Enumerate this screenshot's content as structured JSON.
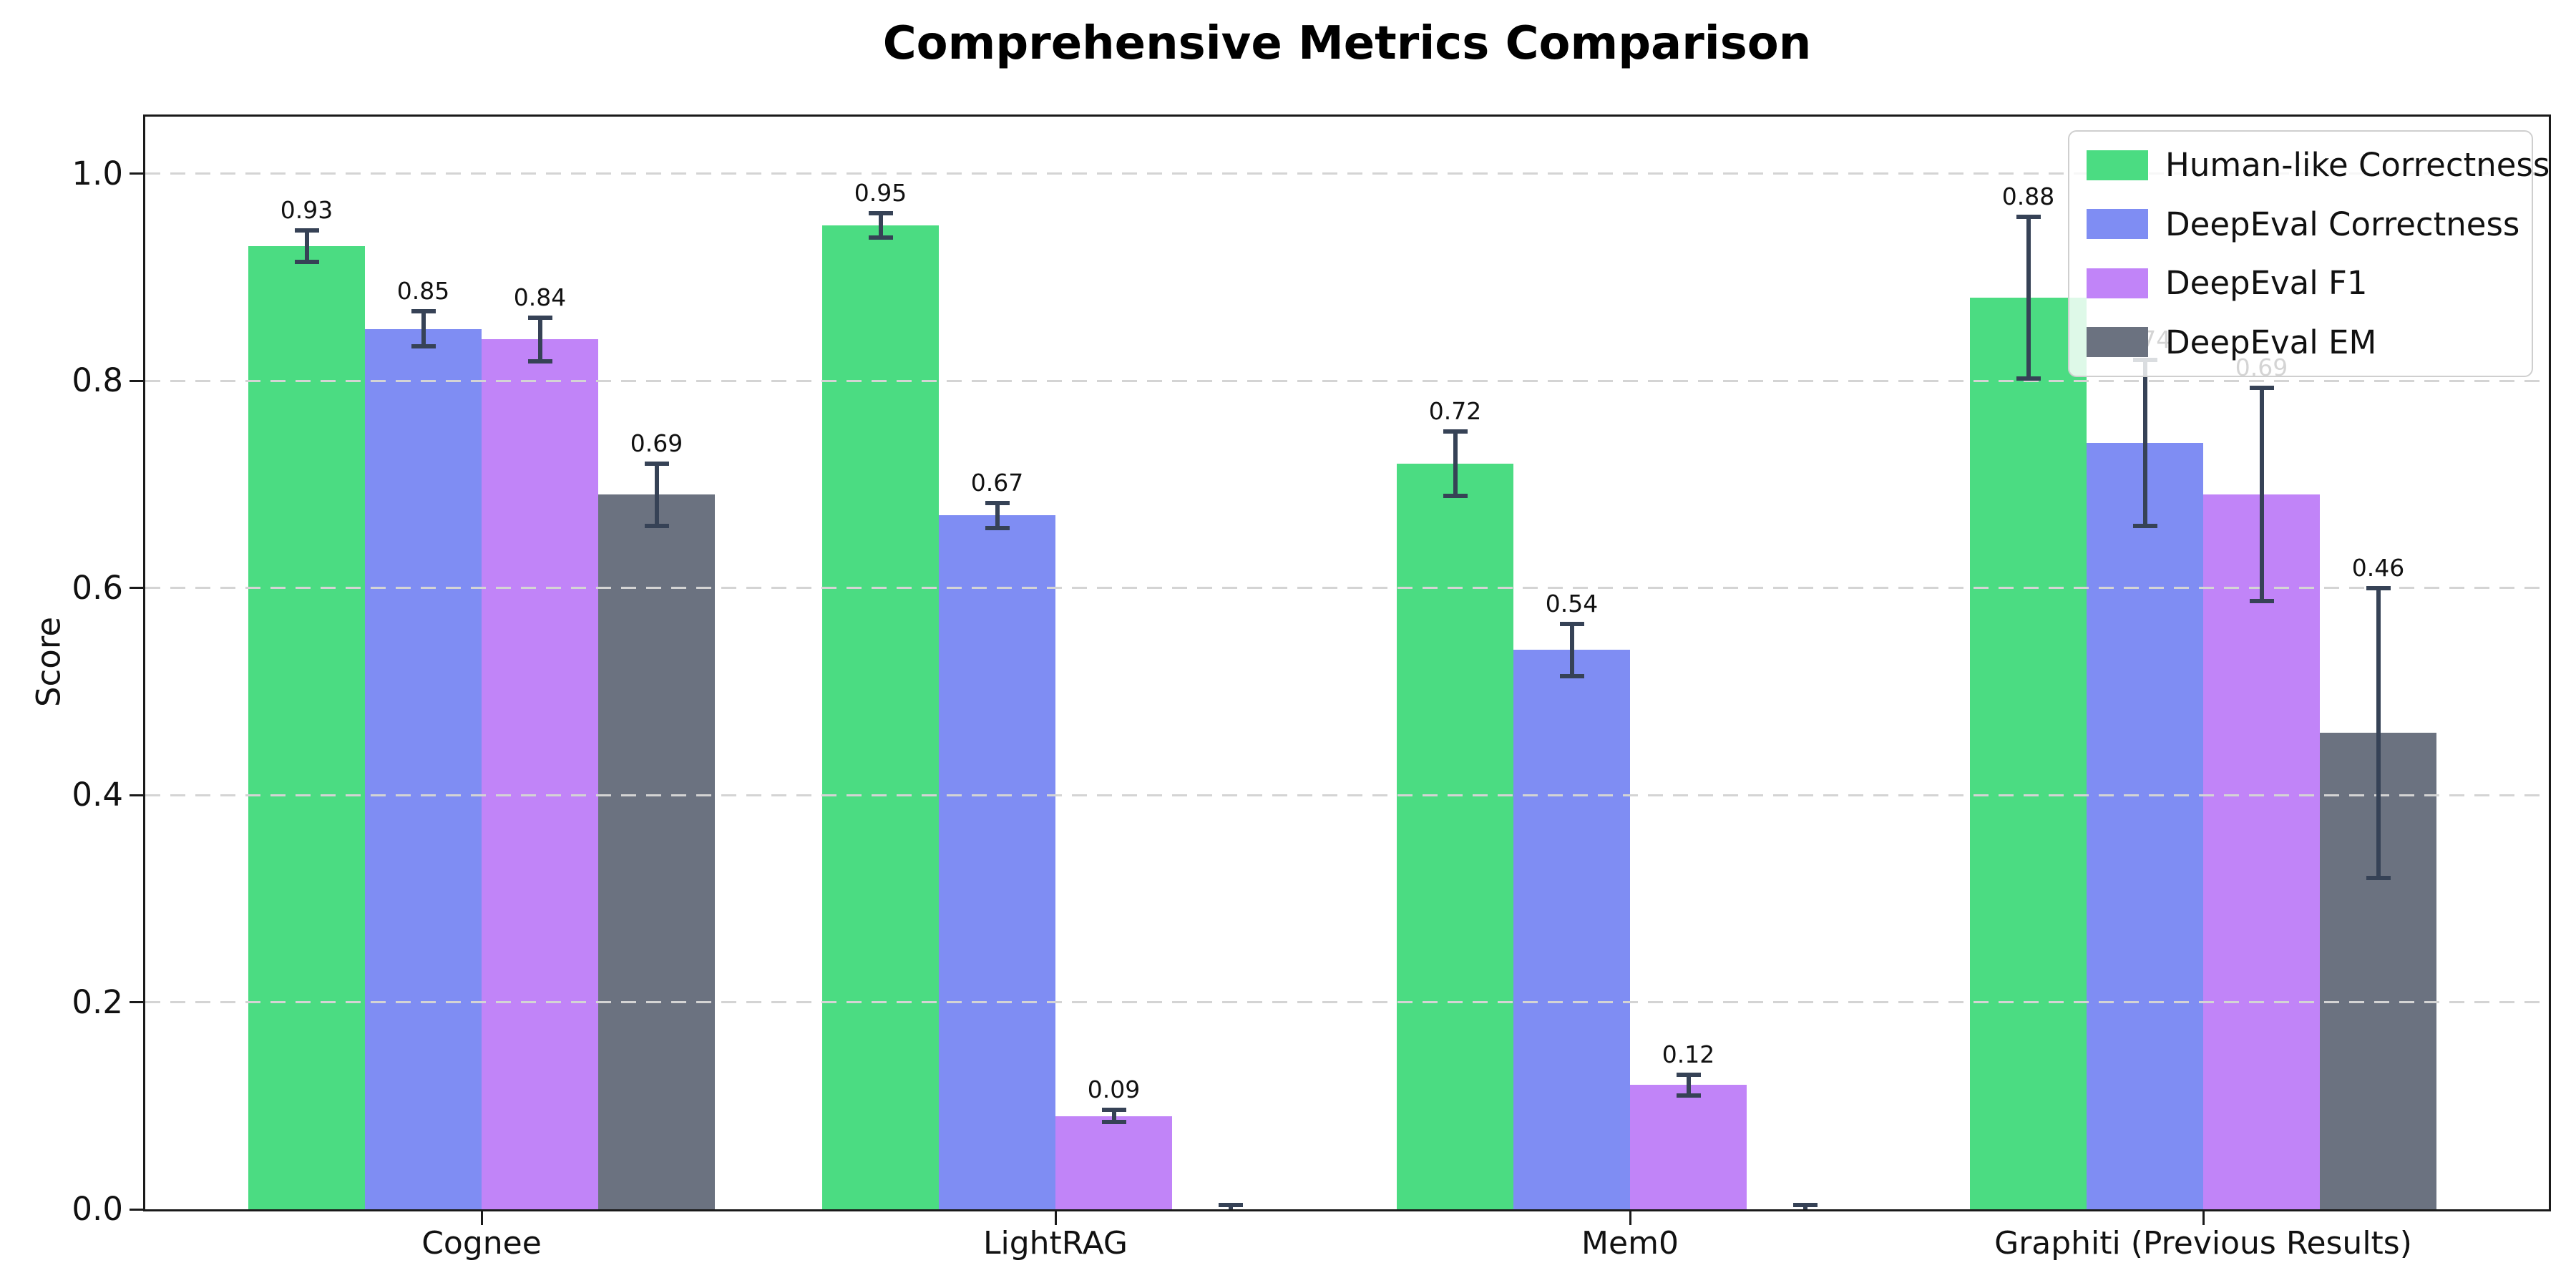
{
  "chart_data": {
    "type": "bar",
    "title": "Comprehensive Metrics Comparison",
    "xlabel": "",
    "ylabel": "Score",
    "ylim": [
      0,
      1.055
    ],
    "yticks": [
      0,
      0.2,
      0.4,
      0.6,
      0.8,
      1.0
    ],
    "ytick_labels": [
      "0.0",
      "0.2",
      "0.4",
      "0.6",
      "0.8",
      "1.0"
    ],
    "categories": [
      "Cognee",
      "LightRAG",
      "Mem0",
      "Graphiti (Previous Results)"
    ],
    "series": [
      {
        "name": "Human-like Correctness",
        "color": "#4bdc82",
        "values": [
          0.93,
          0.95,
          0.72,
          0.88
        ],
        "errors": [
          0.015,
          0.012,
          0.031,
          0.078
        ],
        "labels": [
          "0.93",
          "0.95",
          "0.72",
          "0.88"
        ]
      },
      {
        "name": "DeepEval Correctness",
        "color": "#7f8df3",
        "values": [
          0.85,
          0.67,
          0.54,
          0.74
        ],
        "errors": [
          0.017,
          0.012,
          0.025,
          0.08
        ],
        "labels": [
          "0.85",
          "0.67",
          "0.54",
          "0.74"
        ]
      },
      {
        "name": "DeepEval F1",
        "color": "#c184f8",
        "values": [
          0.84,
          0.09,
          0.12,
          0.69
        ],
        "errors": [
          0.021,
          0.006,
          0.01,
          0.103
        ],
        "labels": [
          "0.84",
          "0.09",
          "0.12",
          "0.69"
        ]
      },
      {
        "name": "DeepEval EM",
        "color": "#6b7280",
        "values": [
          0.69,
          0.0,
          0.0,
          0.46
        ],
        "errors": [
          0.03,
          0.004,
          0.004,
          0.14
        ],
        "labels": [
          "0.69",
          null,
          null,
          "0.46"
        ]
      }
    ],
    "grid": "horizontal dashed light-gray lines drawn over bars",
    "legend_position": "upper right",
    "error_bar_color": "#364256",
    "spine_color": "#1a1a1a",
    "grid_color": "#d4d4d4",
    "text_color": "#111111",
    "background_color": "#ffffff"
  }
}
